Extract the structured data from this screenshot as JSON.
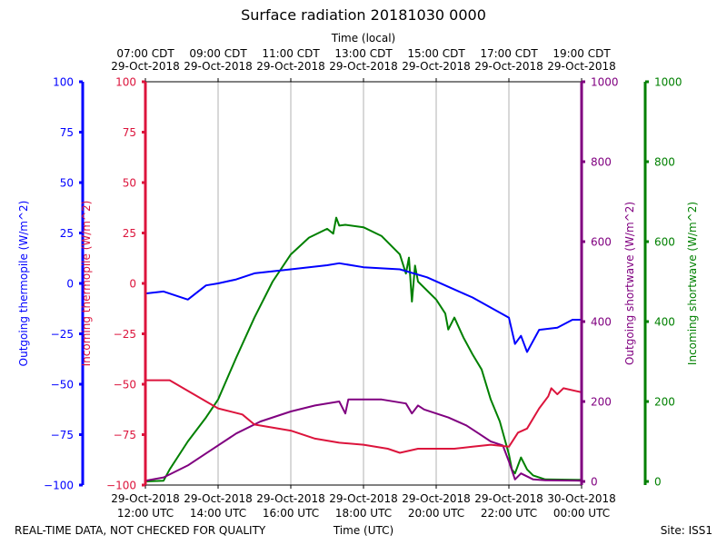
{
  "chart_data": {
    "type": "line",
    "title": "Surface radiation 20181030 0000",
    "top_xlabel": "Time (local)",
    "xlabel": "Time (UTC)",
    "footer_left": "REAL-TIME DATA, NOT CHECKED FOR QUALITY",
    "footer_right": "Site: ISS1",
    "xlim": [
      "2018-10-29 12:00",
      "2018-10-30 00:00"
    ],
    "grid": "vertical",
    "bottom_ticks": [
      {
        "t": "2018-10-29 12:00",
        "l1": "29-Oct-2018",
        "l2": "12:00 UTC"
      },
      {
        "t": "2018-10-29 14:00",
        "l1": "29-Oct-2018",
        "l2": "14:00 UTC"
      },
      {
        "t": "2018-10-29 16:00",
        "l1": "29-Oct-2018",
        "l2": "16:00 UTC"
      },
      {
        "t": "2018-10-29 18:00",
        "l1": "29-Oct-2018",
        "l2": "18:00 UTC"
      },
      {
        "t": "2018-10-29 20:00",
        "l1": "29-Oct-2018",
        "l2": "20:00 UTC"
      },
      {
        "t": "2018-10-29 22:00",
        "l1": "29-Oct-2018",
        "l2": "22:00 UTC"
      },
      {
        "t": "2018-10-30 00:00",
        "l1": "30-Oct-2018",
        "l2": "00:00 UTC"
      }
    ],
    "top_ticks": [
      {
        "t": "2018-10-29 12:00",
        "l1": "07:00 CDT",
        "l2": "29-Oct-2018"
      },
      {
        "t": "2018-10-29 14:00",
        "l1": "09:00 CDT",
        "l2": "29-Oct-2018"
      },
      {
        "t": "2018-10-29 16:00",
        "l1": "11:00 CDT",
        "l2": "29-Oct-2018"
      },
      {
        "t": "2018-10-29 18:00",
        "l1": "13:00 CDT",
        "l2": "29-Oct-2018"
      },
      {
        "t": "2018-10-29 20:00",
        "l1": "15:00 CDT",
        "l2": "29-Oct-2018"
      },
      {
        "t": "2018-10-29 22:00",
        "l1": "17:00 CDT",
        "l2": "29-Oct-2018"
      },
      {
        "t": "2018-10-30 00:00",
        "l1": "19:00 CDT",
        "l2": "29-Oct-2018"
      }
    ],
    "axes": [
      {
        "id": "outgoing_thermopile",
        "label": "Outgoing thermopile (W/m^2)",
        "color": "#0000ff",
        "ylim": [
          -100,
          100
        ],
        "ticks": [
          -100,
          -75,
          -50,
          -25,
          0,
          25,
          50,
          75,
          100
        ]
      },
      {
        "id": "incoming_thermopile",
        "label": "Incoming thermopile (W/m^2)",
        "color": "#dc143c",
        "ylim": [
          -100,
          100
        ],
        "ticks": [
          -100,
          -75,
          -50,
          -25,
          0,
          25,
          50,
          75,
          100
        ]
      },
      {
        "id": "outgoing_shortwave",
        "label": "Outgoing shortwave (W/m^2)",
        "color": "#800080",
        "ylim": [
          -9,
          1000
        ],
        "ticks": [
          0,
          200,
          400,
          600,
          800,
          1000
        ]
      },
      {
        "id": "incoming_shortwave",
        "label": "Incoming shortwave (W/m^2)",
        "color": "#008000",
        "ylim": [
          -9,
          1000
        ],
        "ticks": [
          0,
          200,
          400,
          600,
          800,
          1000
        ]
      }
    ],
    "series": [
      {
        "axis": "incoming_shortwave",
        "color": "#008000",
        "points": [
          [
            "12:00",
            0
          ],
          [
            "12:30",
            2
          ],
          [
            "12:40",
            30
          ],
          [
            "13:10",
            100
          ],
          [
            "13:40",
            160
          ],
          [
            "14:00",
            205
          ],
          [
            "14:30",
            310
          ],
          [
            "15:00",
            410
          ],
          [
            "15:30",
            500
          ],
          [
            "16:00",
            568
          ],
          [
            "16:30",
            610
          ],
          [
            "17:00",
            632
          ],
          [
            "17:10",
            620
          ],
          [
            "17:15",
            660
          ],
          [
            "17:20",
            640
          ],
          [
            "17:30",
            642
          ],
          [
            "18:00",
            636
          ],
          [
            "18:30",
            614
          ],
          [
            "19:00",
            568
          ],
          [
            "19:10",
            520
          ],
          [
            "19:15",
            560
          ],
          [
            "19:20",
            450
          ],
          [
            "19:25",
            540
          ],
          [
            "19:30",
            500
          ],
          [
            "20:00",
            455
          ],
          [
            "20:15",
            420
          ],
          [
            "20:20",
            380
          ],
          [
            "20:30",
            410
          ],
          [
            "20:45",
            360
          ],
          [
            "21:00",
            318
          ],
          [
            "21:15",
            280
          ],
          [
            "21:30",
            205
          ],
          [
            "21:45",
            150
          ],
          [
            "22:00",
            68
          ],
          [
            "22:05",
            30
          ],
          [
            "22:10",
            20
          ],
          [
            "22:20",
            60
          ],
          [
            "22:30",
            30
          ],
          [
            "22:40",
            15
          ],
          [
            "23:00",
            5
          ],
          [
            "24:00",
            4
          ]
        ]
      },
      {
        "axis": "outgoing_shortwave",
        "color": "#800080",
        "points": [
          [
            "12:00",
            2
          ],
          [
            "12:30",
            10
          ],
          [
            "13:10",
            40
          ],
          [
            "13:50",
            80
          ],
          [
            "14:30",
            120
          ],
          [
            "15:10",
            150
          ],
          [
            "16:00",
            175
          ],
          [
            "16:40",
            190
          ],
          [
            "17:20",
            200
          ],
          [
            "17:30",
            170
          ],
          [
            "17:35",
            205
          ],
          [
            "18:00",
            205
          ],
          [
            "18:30",
            205
          ],
          [
            "19:10",
            195
          ],
          [
            "19:20",
            170
          ],
          [
            "19:30",
            190
          ],
          [
            "19:40",
            180
          ],
          [
            "20:20",
            160
          ],
          [
            "20:50",
            140
          ],
          [
            "21:10",
            120
          ],
          [
            "21:30",
            100
          ],
          [
            "21:50",
            90
          ],
          [
            "22:00",
            50
          ],
          [
            "22:10",
            5
          ],
          [
            "22:20",
            20
          ],
          [
            "22:40",
            5
          ],
          [
            "23:00",
            3
          ],
          [
            "24:00",
            2
          ]
        ]
      },
      {
        "axis": "outgoing_thermopile",
        "color": "#0000ff",
        "points": [
          [
            "12:00",
            -5
          ],
          [
            "12:30",
            -4
          ],
          [
            "13:10",
            -8
          ],
          [
            "13:40",
            -1
          ],
          [
            "14:00",
            0
          ],
          [
            "14:30",
            2
          ],
          [
            "15:00",
            5
          ],
          [
            "16:00",
            7
          ],
          [
            "17:00",
            9
          ],
          [
            "17:20",
            10
          ],
          [
            "18:00",
            8
          ],
          [
            "19:00",
            7
          ],
          [
            "19:45",
            3
          ],
          [
            "20:30",
            -3
          ],
          [
            "21:00",
            -7
          ],
          [
            "21:30",
            -12
          ],
          [
            "22:00",
            -17
          ],
          [
            "22:10",
            -30
          ],
          [
            "22:20",
            -26
          ],
          [
            "22:30",
            -34
          ],
          [
            "22:50",
            -23
          ],
          [
            "23:20",
            -22
          ],
          [
            "23:45",
            -18
          ],
          [
            "24:00",
            -18
          ]
        ]
      },
      {
        "axis": "incoming_thermopile",
        "color": "#dc143c",
        "points": [
          [
            "12:00",
            -48
          ],
          [
            "12:40",
            -48
          ],
          [
            "13:20",
            -55
          ],
          [
            "14:00",
            -62
          ],
          [
            "14:40",
            -65
          ],
          [
            "15:00",
            -70
          ],
          [
            "16:00",
            -73
          ],
          [
            "16:40",
            -77
          ],
          [
            "17:20",
            -79
          ],
          [
            "18:00",
            -80
          ],
          [
            "18:40",
            -82
          ],
          [
            "19:00",
            -84
          ],
          [
            "19:30",
            -82
          ],
          [
            "20:00",
            -82
          ],
          [
            "20:30",
            -82
          ],
          [
            "21:00",
            -81
          ],
          [
            "21:30",
            -80
          ],
          [
            "22:00",
            -81
          ],
          [
            "22:15",
            -74
          ],
          [
            "22:30",
            -72
          ],
          [
            "22:50",
            -62
          ],
          [
            "23:05",
            -56
          ],
          [
            "23:10",
            -52
          ],
          [
            "23:20",
            -55
          ],
          [
            "23:30",
            -52
          ],
          [
            "24:00",
            -54
          ]
        ]
      }
    ]
  }
}
